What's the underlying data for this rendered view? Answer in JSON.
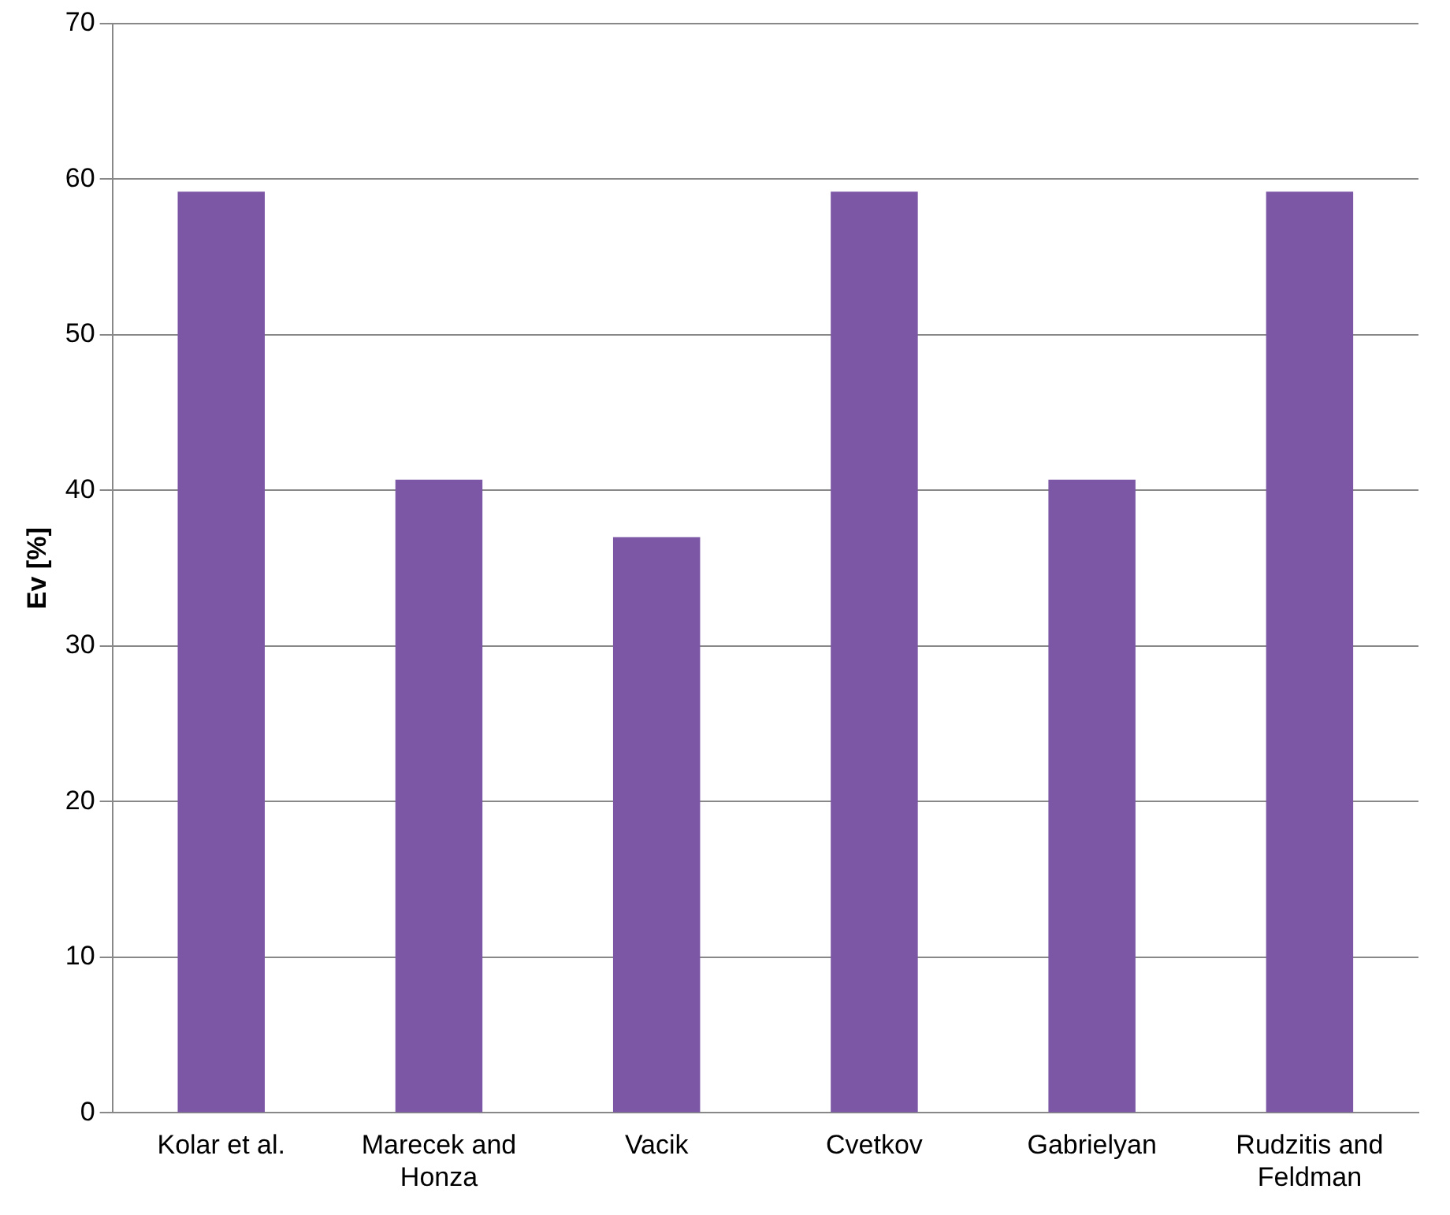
{
  "chart_data": {
    "type": "bar",
    "ylabel": "Ev [%]",
    "categories": [
      "Kolar et al.",
      "Marecek and Honza",
      "Vacik",
      "Cvetkov",
      "Gabrielyan",
      "Rudzitis and Feldman"
    ],
    "values": [
      59.2,
      40.7,
      37.0,
      59.2,
      40.7,
      59.2
    ],
    "color": "#7b57a6",
    "ylim": [
      0,
      70
    ],
    "yticks": [
      0,
      10,
      20,
      30,
      40,
      50,
      60,
      70
    ],
    "grid": "y",
    "legend": false
  }
}
